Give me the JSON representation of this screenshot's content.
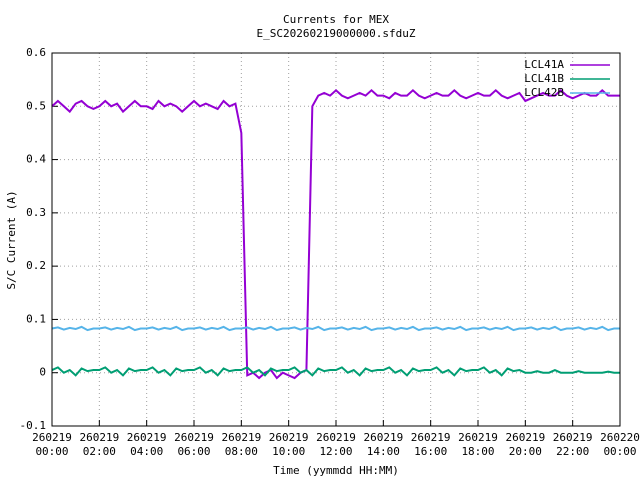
{
  "chart_data": {
    "type": "line",
    "title": "Currents for MEX",
    "subtitle": "E_SC20260219000000.sfduZ",
    "x_label": "Time (yymmdd HH:MM)",
    "y_label": "S/C Current (A)",
    "xlim": [
      0,
      24
    ],
    "ylim": [
      -0.1,
      0.6
    ],
    "xticks": [
      {
        "value": 0,
        "label": "260219 00:00"
      },
      {
        "value": 2,
        "label": "260219 02:00"
      },
      {
        "value": 4,
        "label": "260219 04:00"
      },
      {
        "value": 6,
        "label": "260219 06:00"
      },
      {
        "value": 8,
        "label": "260219 08:00"
      },
      {
        "value": 10,
        "label": "260219 10:00"
      },
      {
        "value": 12,
        "label": "260219 12:00"
      },
      {
        "value": 14,
        "label": "260219 14:00"
      },
      {
        "value": 16,
        "label": "260219 16:00"
      },
      {
        "value": 18,
        "label": "260219 18:00"
      },
      {
        "value": 20,
        "label": "260219 20:00"
      },
      {
        "value": 22,
        "label": "260219 22:00"
      },
      {
        "value": 24,
        "label": "260220 00:00"
      }
    ],
    "yticks": [
      -0.1,
      0,
      0.1,
      0.2,
      0.3,
      0.4,
      0.5,
      0.6
    ],
    "grid": true,
    "legend": "top-right",
    "x": [
      0,
      0.25,
      0.5,
      0.75,
      1,
      1.25,
      1.5,
      1.75,
      2,
      2.25,
      2.5,
      2.75,
      3,
      3.25,
      3.5,
      3.75,
      4,
      4.25,
      4.5,
      4.75,
      5,
      5.25,
      5.5,
      5.75,
      6,
      6.25,
      6.5,
      6.75,
      7,
      7.25,
      7.5,
      7.75,
      8,
      8.25,
      8.5,
      8.75,
      9,
      9.25,
      9.5,
      9.75,
      10,
      10.25,
      10.5,
      10.75,
      11,
      11.25,
      11.5,
      11.75,
      12,
      12.25,
      12.5,
      12.75,
      13,
      13.25,
      13.5,
      13.75,
      14,
      14.25,
      14.5,
      14.75,
      15,
      15.25,
      15.5,
      15.75,
      16,
      16.25,
      16.5,
      16.75,
      17,
      17.25,
      17.5,
      17.75,
      18,
      18.25,
      18.5,
      18.75,
      19,
      19.25,
      19.5,
      19.75,
      20,
      20.25,
      20.5,
      20.75,
      21,
      21.25,
      21.5,
      21.75,
      22,
      22.25,
      22.5,
      22.75,
      23,
      23.25,
      23.5,
      23.75,
      24
    ],
    "series": [
      {
        "name": "LCL41A",
        "color": "#9400d3",
        "values": [
          0.5,
          0.51,
          0.5,
          0.49,
          0.505,
          0.51,
          0.5,
          0.495,
          0.5,
          0.51,
          0.5,
          0.505,
          0.49,
          0.5,
          0.51,
          0.5,
          0.5,
          0.495,
          0.51,
          0.5,
          0.505,
          0.5,
          0.49,
          0.5,
          0.51,
          0.5,
          0.505,
          0.5,
          0.495,
          0.51,
          0.5,
          0.505,
          0.45,
          -0.005,
          0,
          -0.01,
          0,
          0.005,
          -0.01,
          0,
          -0.005,
          -0.01,
          0,
          0.005,
          0.5,
          0.52,
          0.525,
          0.52,
          0.53,
          0.52,
          0.515,
          0.52,
          0.525,
          0.52,
          0.53,
          0.52,
          0.52,
          0.515,
          0.525,
          0.52,
          0.52,
          0.53,
          0.52,
          0.515,
          0.52,
          0.525,
          0.52,
          0.52,
          0.53,
          0.52,
          0.515,
          0.52,
          0.525,
          0.52,
          0.52,
          0.53,
          0.52,
          0.515,
          0.52,
          0.525,
          0.51,
          0.515,
          0.52,
          0.525,
          0.52,
          0.52,
          0.53,
          0.52,
          0.515,
          0.52,
          0.525,
          0.52,
          0.52,
          0.53,
          0.52,
          0.52,
          0.52
        ]
      },
      {
        "name": "LCL41B",
        "color": "#009e73",
        "values": [
          0.005,
          0.01,
          0,
          0.005,
          -0.005,
          0.008,
          0.003,
          0.005,
          0.005,
          0.01,
          0,
          0.005,
          -0.005,
          0.008,
          0.003,
          0.005,
          0.005,
          0.01,
          0,
          0.005,
          -0.005,
          0.008,
          0.003,
          0.005,
          0.005,
          0.01,
          0,
          0.005,
          -0.005,
          0.008,
          0.003,
          0.005,
          0.005,
          0.01,
          0,
          0.005,
          -0.005,
          0.008,
          0.003,
          0.005,
          0.005,
          0.01,
          0,
          0.005,
          -0.005,
          0.008,
          0.003,
          0.005,
          0.005,
          0.01,
          0,
          0.005,
          -0.005,
          0.008,
          0.003,
          0.005,
          0.005,
          0.01,
          0,
          0.005,
          -0.005,
          0.008,
          0.003,
          0.005,
          0.005,
          0.01,
          0,
          0.005,
          -0.005,
          0.008,
          0.003,
          0.005,
          0.005,
          0.01,
          0,
          0.005,
          -0.005,
          0.008,
          0.003,
          0.005,
          0,
          0,
          0.003,
          0,
          0,
          0.005,
          0,
          0,
          0,
          0.003,
          0,
          0,
          0,
          0,
          0.002,
          0,
          0
        ]
      },
      {
        "name": "LCL42B",
        "color": "#56b4e9",
        "values": [
          0.083,
          0.085,
          0.081,
          0.084,
          0.082,
          0.086,
          0.08,
          0.083,
          0.083,
          0.085,
          0.081,
          0.084,
          0.082,
          0.086,
          0.08,
          0.083,
          0.083,
          0.085,
          0.081,
          0.084,
          0.082,
          0.086,
          0.08,
          0.083,
          0.083,
          0.085,
          0.081,
          0.084,
          0.082,
          0.086,
          0.08,
          0.083,
          0.083,
          0.085,
          0.081,
          0.084,
          0.082,
          0.086,
          0.08,
          0.083,
          0.083,
          0.085,
          0.081,
          0.084,
          0.082,
          0.086,
          0.08,
          0.083,
          0.083,
          0.085,
          0.081,
          0.084,
          0.082,
          0.086,
          0.08,
          0.083,
          0.083,
          0.085,
          0.081,
          0.084,
          0.082,
          0.086,
          0.08,
          0.083,
          0.083,
          0.085,
          0.081,
          0.084,
          0.082,
          0.086,
          0.08,
          0.083,
          0.083,
          0.085,
          0.081,
          0.084,
          0.082,
          0.086,
          0.08,
          0.083,
          0.083,
          0.085,
          0.081,
          0.084,
          0.082,
          0.086,
          0.08,
          0.083,
          0.083,
          0.085,
          0.081,
          0.084,
          0.082,
          0.086,
          0.08,
          0.083,
          0.083
        ]
      }
    ]
  }
}
